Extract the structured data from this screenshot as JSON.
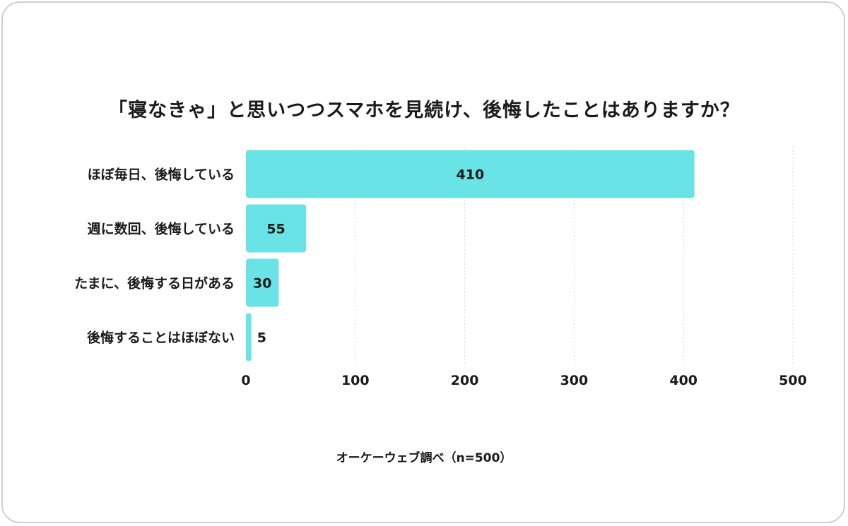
{
  "chart_data": {
    "type": "bar",
    "orientation": "horizontal",
    "title": "「寝なきゃ」と思いつつスマホを見続け、後悔したことはありますか？",
    "categories": [
      "ほぼ毎日、後悔している",
      "週に数回、後悔している",
      "たまに、後悔する日がある",
      "後悔することはほぼない"
    ],
    "values": [
      410,
      55,
      30,
      5
    ],
    "xlim": [
      0,
      500
    ],
    "ticks": [
      0,
      100,
      200,
      300,
      400,
      500
    ],
    "grid": true,
    "bar_color": "#6ae3e6",
    "grid_color": "#d9d9d9",
    "source": "オーケーウェブ調べ（n=500）"
  }
}
